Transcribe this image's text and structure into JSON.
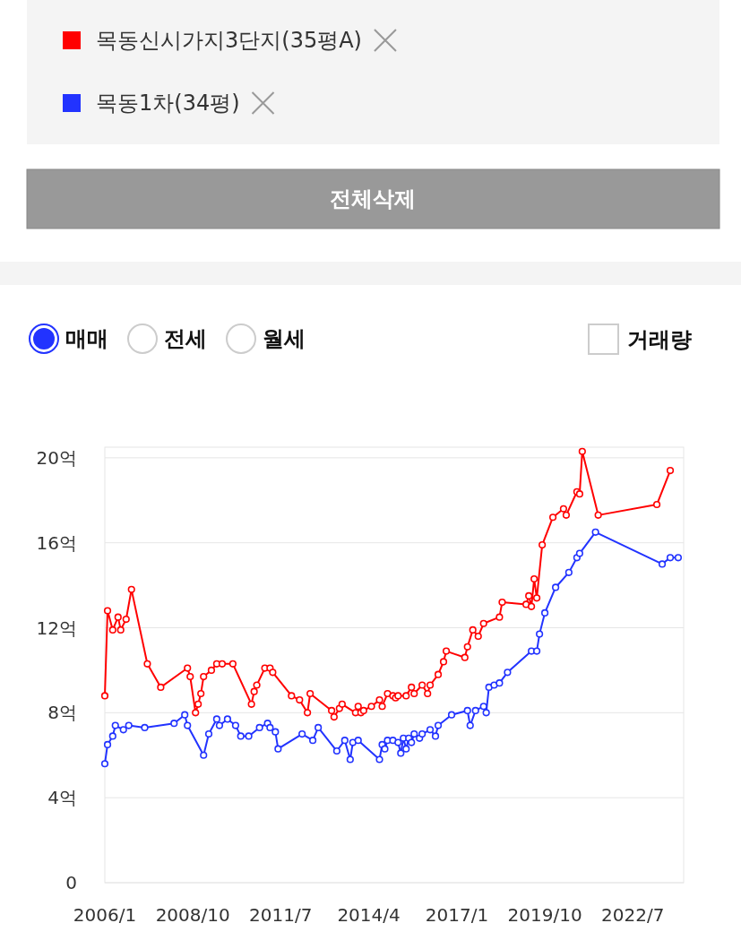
{
  "chart_data": {
    "type": "line",
    "legend": "top",
    "grid": "y",
    "marker": "circle",
    "annotations": [
      "전체삭제",
      "매매",
      "전세",
      "월세",
      "거래량"
    ],
    "xlim": [
      "2006-01",
      "2024-02"
    ],
    "ylim": [
      0,
      20.5
    ],
    "xticks": [
      {
        "value": "2006-01",
        "label": "2006/1"
      },
      {
        "value": "2008-10",
        "label": "2008/10"
      },
      {
        "value": "2011-07",
        "label": "2011/7"
      },
      {
        "value": "2014-04",
        "label": "2014/4"
      },
      {
        "value": "2017-01",
        "label": "2017/1"
      },
      {
        "value": "2019-10",
        "label": "2019/10"
      },
      {
        "value": "2022-07",
        "label": "2022/7"
      }
    ],
    "yticks": [
      0,
      {
        "value": 4,
        "label": "4억"
      },
      {
        "value": 8,
        "label": "8억"
      },
      {
        "value": 12,
        "label": "12억"
      },
      {
        "value": 16,
        "label": "16억"
      },
      {
        "value": 20,
        "label": "20억"
      }
    ],
    "series": [
      {
        "name": "목동신시가지3단지(35평A)",
        "color": "#ff0000",
        "x": [
          "2006-01",
          "2006-02",
          "2006-04",
          "2006-06",
          "2006-07",
          "2006-09",
          "2006-11",
          "2007-05",
          "2007-10",
          "2008-08",
          "2008-09",
          "2008-11",
          "2008-12",
          "2009-01",
          "2009-02",
          "2009-05",
          "2009-07",
          "2009-09",
          "2010-01",
          "2010-08",
          "2010-09",
          "2010-10",
          "2011-01",
          "2011-03",
          "2011-04",
          "2011-11",
          "2012-02",
          "2012-05",
          "2012-06",
          "2013-02",
          "2013-03",
          "2013-05",
          "2013-06",
          "2013-11",
          "2013-12",
          "2014-01",
          "2014-02",
          "2014-05",
          "2014-08",
          "2014-09",
          "2014-11",
          "2015-01",
          "2015-02",
          "2015-03",
          "2015-06",
          "2015-08",
          "2015-09",
          "2015-12",
          "2016-02",
          "2016-03",
          "2016-06",
          "2016-08",
          "2016-09",
          "2017-04",
          "2017-05",
          "2017-07",
          "2017-09",
          "2017-11",
          "2018-05",
          "2018-06",
          "2019-03",
          "2019-04",
          "2019-05",
          "2019-06",
          "2019-07",
          "2019-09",
          "2020-01",
          "2020-05",
          "2020-06",
          "2020-10",
          "2020-11",
          "2020-12",
          "2021-06",
          "2023-04",
          "2023-09"
        ],
        "values": [
          8.8,
          12.8,
          11.9,
          12.5,
          11.9,
          12.4,
          13.8,
          10.3,
          9.2,
          10.1,
          9.7,
          8.0,
          8.4,
          8.9,
          9.7,
          10.0,
          10.3,
          10.3,
          10.3,
          8.4,
          9.0,
          9.3,
          10.1,
          10.1,
          9.9,
          8.8,
          8.6,
          8.0,
          8.9,
          8.1,
          7.8,
          8.2,
          8.4,
          8.0,
          8.3,
          8.0,
          8.1,
          8.3,
          8.6,
          8.3,
          8.9,
          8.8,
          8.7,
          8.8,
          8.8,
          9.2,
          8.9,
          9.3,
          8.9,
          9.3,
          9.8,
          10.4,
          10.9,
          10.6,
          11.1,
          11.9,
          11.6,
          12.2,
          12.5,
          13.2,
          13.1,
          13.5,
          13.0,
          14.3,
          13.4,
          15.9,
          17.2,
          17.6,
          17.3,
          18.4,
          18.3,
          20.3,
          17.3,
          17.8,
          19.4
        ]
      },
      {
        "name": "목동1차(34평)",
        "color": "#2233ff",
        "x": [
          "2006-01",
          "2006-02",
          "2006-04",
          "2006-05",
          "2006-08",
          "2006-10",
          "2007-04",
          "2008-03",
          "2008-07",
          "2008-08",
          "2009-02",
          "2009-04",
          "2009-07",
          "2009-08",
          "2009-11",
          "2010-02",
          "2010-04",
          "2010-07",
          "2010-11",
          "2011-02",
          "2011-03",
          "2011-05",
          "2011-06",
          "2012-03",
          "2012-07",
          "2012-09",
          "2013-04",
          "2013-07",
          "2013-09",
          "2013-10",
          "2013-12",
          "2014-08",
          "2014-09",
          "2014-10",
          "2014-11",
          "2015-01",
          "2015-03",
          "2015-04",
          "2015-05",
          "2015-06",
          "2015-07",
          "2015-08",
          "2015-09",
          "2015-11",
          "2015-12",
          "2016-03",
          "2016-05",
          "2016-06",
          "2016-11",
          "2017-05",
          "2017-06",
          "2017-08",
          "2017-11",
          "2017-12",
          "2018-01",
          "2018-03",
          "2018-05",
          "2018-08",
          "2019-05",
          "2019-07",
          "2019-08",
          "2019-10",
          "2020-02",
          "2020-07",
          "2020-10",
          "2020-11",
          "2021-05",
          "2023-06",
          "2023-09",
          "2023-12"
        ],
        "values": [
          5.6,
          6.5,
          6.9,
          7.4,
          7.2,
          7.4,
          7.3,
          7.5,
          7.9,
          7.4,
          6.0,
          7.0,
          7.7,
          7.4,
          7.7,
          7.4,
          6.9,
          6.9,
          7.3,
          7.5,
          7.3,
          7.1,
          6.3,
          7.0,
          6.7,
          7.3,
          6.2,
          6.7,
          5.8,
          6.6,
          6.7,
          5.8,
          6.5,
          6.3,
          6.7,
          6.7,
          6.6,
          6.1,
          6.8,
          6.3,
          6.8,
          6.6,
          7.0,
          6.8,
          7.0,
          7.2,
          6.9,
          7.4,
          7.9,
          8.1,
          7.4,
          8.1,
          8.3,
          8.0,
          9.2,
          9.3,
          9.4,
          9.9,
          10.9,
          10.9,
          11.7,
          12.7,
          13.9,
          14.6,
          15.3,
          15.5,
          16.5,
          15.0,
          15.3,
          15.3
        ]
      }
    ]
  }
}
